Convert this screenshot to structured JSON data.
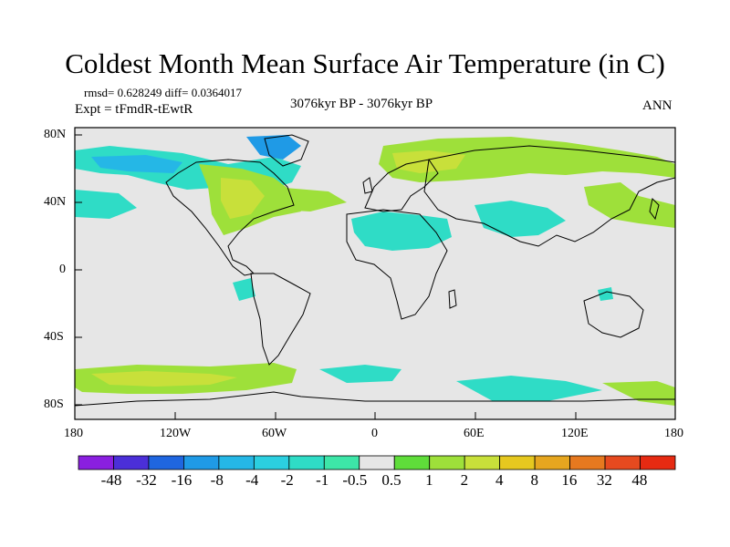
{
  "title": "Coldest Month Mean Surface Air Temperature (in C)",
  "stats": "rmsd= 0.628249 diff= 0.0364017",
  "experiment": "Expt = tFmdR-tEwtR",
  "period": "3076kyr BP - 3076kyr BP",
  "season": "ANN",
  "axes": {
    "lat_labels": [
      "80N",
      "40N",
      "0",
      "40S",
      "80S"
    ],
    "lon_labels": [
      "180",
      "120W",
      "60W",
      "0",
      "60E",
      "120E",
      "180"
    ]
  },
  "colorbar": {
    "labels": [
      "-48",
      "-32",
      "-16",
      "-8",
      "-4",
      "-2",
      "-1",
      "-0.5",
      "0.5",
      "1",
      "2",
      "4",
      "8",
      "16",
      "32",
      "48"
    ],
    "colors": [
      "#8a1fe0",
      "#4b2fd8",
      "#1f66e0",
      "#1f9ae6",
      "#25b7e6",
      "#2bcfe0",
      "#2fdcc6",
      "#3de6a8",
      "#e6e6e6",
      "#5fdd3a",
      "#9ee03a",
      "#c8e03a",
      "#e6c81f",
      "#e6a61f",
      "#e6791f",
      "#e64a1f",
      "#e62a12"
    ]
  },
  "colors": {
    "background": "#e6e6e6",
    "negative_anomaly": "#2fdcc6",
    "positive_anomaly": "#9ee03a"
  }
}
